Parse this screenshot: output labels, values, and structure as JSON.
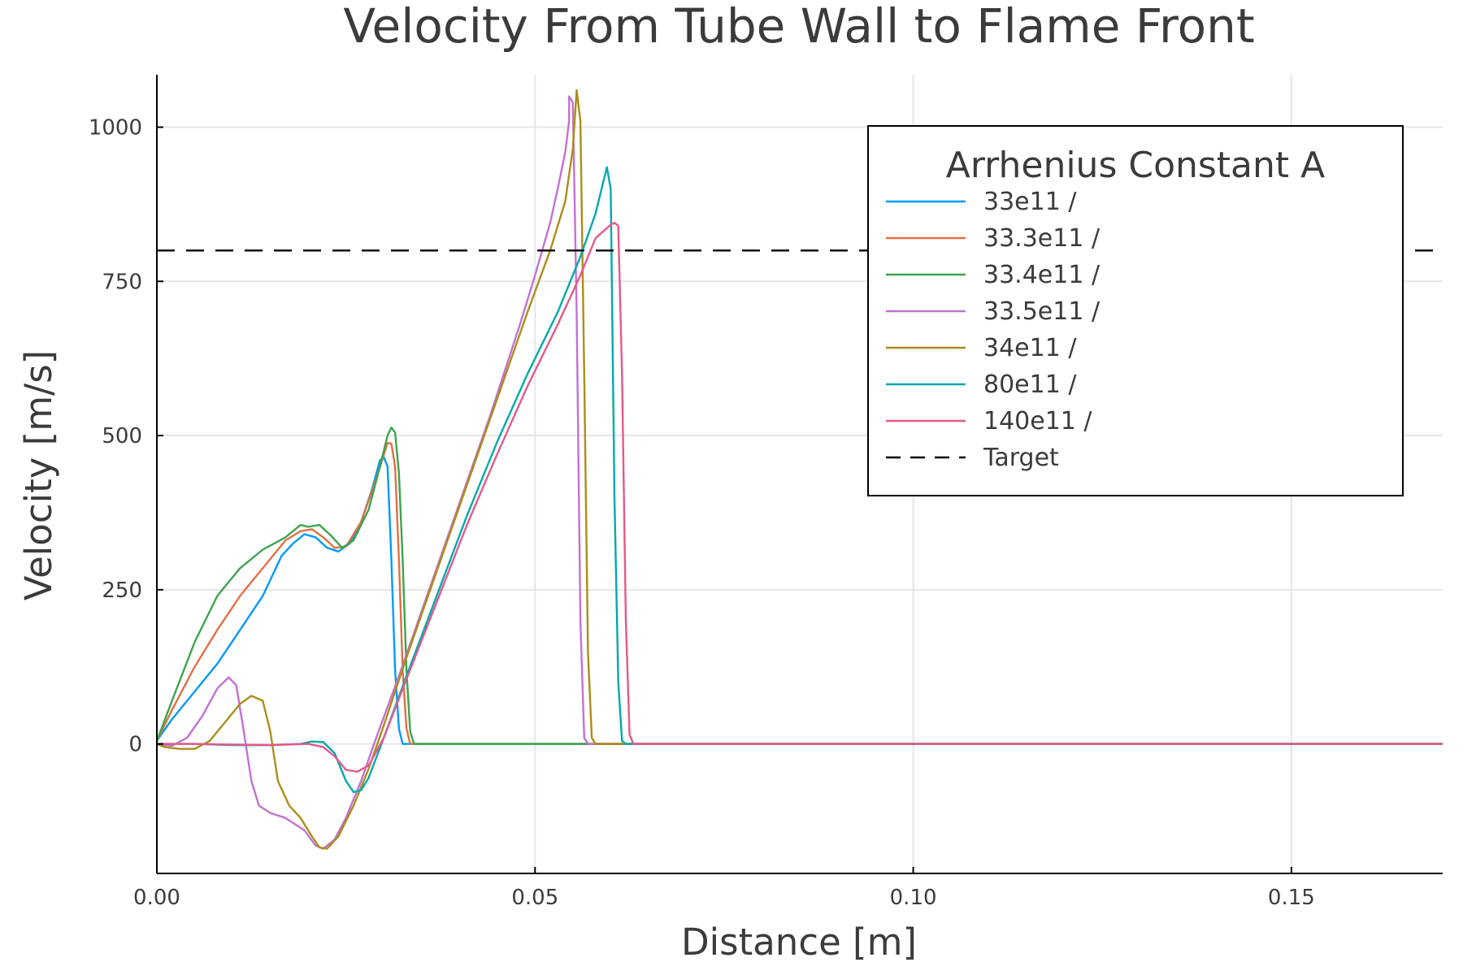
{
  "chart_data": {
    "type": "line",
    "title": "Velocity From Tube Wall to Flame Front",
    "xlabel": "Distance [m]",
    "ylabel": "Velocity [m/s]",
    "xlim": [
      0,
      0.17
    ],
    "ylim": [
      -210,
      1085
    ],
    "x_ticks": [
      0,
      0.05,
      0.1,
      0.15
    ],
    "x_tick_labels": [
      "0.00",
      "0.05",
      "0.10",
      "0.15"
    ],
    "y_ticks": [
      0,
      250,
      500,
      750,
      1000
    ],
    "y_tick_labels": [
      "0",
      "250",
      "500",
      "750",
      "1000"
    ],
    "grid": true,
    "legend": {
      "title": "Arrhenius Constant A",
      "placement": "top-right"
    },
    "series": [
      {
        "name": "33e11 /",
        "color": "#009af9",
        "points": [
          [
            0,
            5
          ],
          [
            0.002,
            40
          ],
          [
            0.005,
            85
          ],
          [
            0.008,
            130
          ],
          [
            0.011,
            185
          ],
          [
            0.014,
            240
          ],
          [
            0.0165,
            305
          ],
          [
            0.018,
            325
          ],
          [
            0.0195,
            340
          ],
          [
            0.021,
            335
          ],
          [
            0.0225,
            318
          ],
          [
            0.024,
            312
          ],
          [
            0.0255,
            325
          ],
          [
            0.027,
            360
          ],
          [
            0.0285,
            415
          ],
          [
            0.0295,
            460
          ],
          [
            0.03,
            465
          ],
          [
            0.0305,
            450
          ],
          [
            0.031,
            300
          ],
          [
            0.0315,
            120
          ],
          [
            0.032,
            25
          ],
          [
            0.0325,
            0
          ],
          [
            0.17,
            0
          ]
        ]
      },
      {
        "name": "33.3e11 /",
        "color": "#e26f46",
        "points": [
          [
            0,
            5
          ],
          [
            0.002,
            55
          ],
          [
            0.005,
            125
          ],
          [
            0.008,
            185
          ],
          [
            0.011,
            240
          ],
          [
            0.014,
            285
          ],
          [
            0.017,
            330
          ],
          [
            0.019,
            345
          ],
          [
            0.0205,
            348
          ],
          [
            0.022,
            335
          ],
          [
            0.0235,
            318
          ],
          [
            0.025,
            320
          ],
          [
            0.027,
            360
          ],
          [
            0.029,
            430
          ],
          [
            0.0305,
            488
          ],
          [
            0.031,
            487
          ],
          [
            0.0315,
            450
          ],
          [
            0.032,
            300
          ],
          [
            0.0325,
            120
          ],
          [
            0.033,
            25
          ],
          [
            0.0335,
            0
          ],
          [
            0.17,
            0
          ]
        ]
      },
      {
        "name": "33.4e11 /",
        "color": "#3da44d",
        "points": [
          [
            0,
            5
          ],
          [
            0.002,
            70
          ],
          [
            0.005,
            165
          ],
          [
            0.008,
            240
          ],
          [
            0.011,
            285
          ],
          [
            0.014,
            315
          ],
          [
            0.017,
            335
          ],
          [
            0.019,
            355
          ],
          [
            0.02,
            352
          ],
          [
            0.0215,
            355
          ],
          [
            0.023,
            338
          ],
          [
            0.0245,
            318
          ],
          [
            0.026,
            330
          ],
          [
            0.028,
            380
          ],
          [
            0.0295,
            450
          ],
          [
            0.0305,
            500
          ],
          [
            0.031,
            513
          ],
          [
            0.0315,
            505
          ],
          [
            0.032,
            440
          ],
          [
            0.0325,
            300
          ],
          [
            0.033,
            120
          ],
          [
            0.0335,
            20
          ],
          [
            0.034,
            0
          ],
          [
            0.17,
            0
          ]
        ]
      },
      {
        "name": "33.5e11 /",
        "color": "#c271d2",
        "points": [
          [
            0,
            0
          ],
          [
            0.002,
            -3
          ],
          [
            0.004,
            10
          ],
          [
            0.006,
            45
          ],
          [
            0.008,
            90
          ],
          [
            0.0095,
            108
          ],
          [
            0.0105,
            95
          ],
          [
            0.0115,
            20
          ],
          [
            0.0125,
            -60
          ],
          [
            0.0135,
            -100
          ],
          [
            0.015,
            -112
          ],
          [
            0.017,
            -120
          ],
          [
            0.0195,
            -140
          ],
          [
            0.021,
            -165
          ],
          [
            0.022,
            -170
          ],
          [
            0.0235,
            -155
          ],
          [
            0.025,
            -120
          ],
          [
            0.027,
            -60
          ],
          [
            0.029,
            10
          ],
          [
            0.032,
            110
          ],
          [
            0.036,
            250
          ],
          [
            0.04,
            390
          ],
          [
            0.044,
            530
          ],
          [
            0.048,
            680
          ],
          [
            0.05,
            760
          ],
          [
            0.052,
            845
          ],
          [
            0.053,
            900
          ],
          [
            0.054,
            960
          ],
          [
            0.0545,
            1010
          ],
          [
            0.0545,
            1050
          ],
          [
            0.055,
            1040
          ],
          [
            0.0555,
            700
          ],
          [
            0.056,
            200
          ],
          [
            0.0565,
            10
          ],
          [
            0.057,
            0
          ],
          [
            0.17,
            0
          ]
        ]
      },
      {
        "name": "34e11 /",
        "color": "#ac8d18",
        "points": [
          [
            0,
            0
          ],
          [
            0.001,
            -5
          ],
          [
            0.003,
            -8
          ],
          [
            0.005,
            -8
          ],
          [
            0.007,
            5
          ],
          [
            0.009,
            35
          ],
          [
            0.011,
            65
          ],
          [
            0.0125,
            78
          ],
          [
            0.014,
            70
          ],
          [
            0.015,
            20
          ],
          [
            0.016,
            -60
          ],
          [
            0.0175,
            -100
          ],
          [
            0.019,
            -120
          ],
          [
            0.0205,
            -150
          ],
          [
            0.0215,
            -168
          ],
          [
            0.0225,
            -170
          ],
          [
            0.024,
            -150
          ],
          [
            0.026,
            -100
          ],
          [
            0.028,
            -40
          ],
          [
            0.03,
            30
          ],
          [
            0.033,
            140
          ],
          [
            0.037,
            280
          ],
          [
            0.041,
            420
          ],
          [
            0.045,
            560
          ],
          [
            0.049,
            700
          ],
          [
            0.052,
            800
          ],
          [
            0.054,
            880
          ],
          [
            0.055,
            965
          ],
          [
            0.0555,
            1060
          ],
          [
            0.056,
            1010
          ],
          [
            0.0565,
            600
          ],
          [
            0.057,
            150
          ],
          [
            0.0575,
            10
          ],
          [
            0.058,
            0
          ],
          [
            0.17,
            0
          ]
        ]
      },
      {
        "name": "80e11 /",
        "color": "#00a9ad",
        "points": [
          [
            0,
            0
          ],
          [
            0.005,
            0
          ],
          [
            0.01,
            -2
          ],
          [
            0.015,
            -2
          ],
          [
            0.019,
            0
          ],
          [
            0.0205,
            4
          ],
          [
            0.022,
            3
          ],
          [
            0.0235,
            -15
          ],
          [
            0.025,
            -60
          ],
          [
            0.026,
            -78
          ],
          [
            0.027,
            -75
          ],
          [
            0.028,
            -55
          ],
          [
            0.03,
            10
          ],
          [
            0.033,
            110
          ],
          [
            0.037,
            240
          ],
          [
            0.041,
            370
          ],
          [
            0.045,
            490
          ],
          [
            0.049,
            600
          ],
          [
            0.053,
            700
          ],
          [
            0.056,
            790
          ],
          [
            0.058,
            860
          ],
          [
            0.0595,
            935
          ],
          [
            0.06,
            900
          ],
          [
            0.0605,
            400
          ],
          [
            0.061,
            100
          ],
          [
            0.0615,
            5
          ],
          [
            0.062,
            0
          ],
          [
            0.17,
            0
          ]
        ]
      },
      {
        "name": "140e11 /",
        "color": "#e4598b",
        "points": [
          [
            0,
            0
          ],
          [
            0.005,
            0
          ],
          [
            0.01,
            -1
          ],
          [
            0.015,
            -2
          ],
          [
            0.02,
            0
          ],
          [
            0.022,
            -5
          ],
          [
            0.0235,
            -20
          ],
          [
            0.025,
            -42
          ],
          [
            0.0265,
            -45
          ],
          [
            0.028,
            -35
          ],
          [
            0.03,
            10
          ],
          [
            0.033,
            105
          ],
          [
            0.037,
            230
          ],
          [
            0.041,
            355
          ],
          [
            0.045,
            470
          ],
          [
            0.049,
            580
          ],
          [
            0.053,
            680
          ],
          [
            0.056,
            760
          ],
          [
            0.058,
            820
          ],
          [
            0.06,
            842
          ],
          [
            0.0605,
            845
          ],
          [
            0.061,
            840
          ],
          [
            0.0615,
            600
          ],
          [
            0.062,
            200
          ],
          [
            0.0625,
            15
          ],
          [
            0.063,
            0
          ],
          [
            0.17,
            0
          ]
        ]
      }
    ],
    "reference_line": {
      "name": "Target",
      "y": 800,
      "color": "#000000",
      "style": "dashed"
    }
  }
}
